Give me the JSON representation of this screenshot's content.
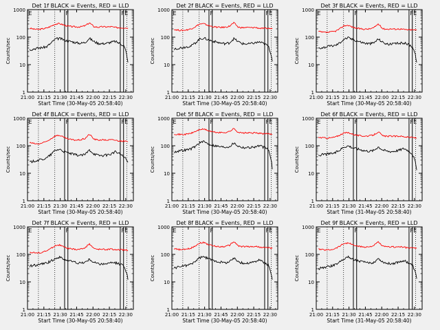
{
  "chart_data": [
    {
      "type": "line",
      "title": "Det 1f BLACK = Events, RED = LLD",
      "xlabel": "Start Time (30-May-05 20:58:40)",
      "ylabel": "Counts/sec",
      "xticks": [
        "21:00",
        "21:15",
        "21:30",
        "21:45",
        "22:00",
        "22:15",
        "22:30"
      ],
      "yticks": [
        "1",
        "10",
        "100",
        "1000"
      ],
      "ylim": [
        1,
        1000
      ],
      "yscale": "log",
      "markers": [
        "E",
        "F",
        "F",
        "E"
      ],
      "series": [
        {
          "name": "RED = LLD",
          "color": "#ff0000",
          "values": [
            210,
            195,
            190,
            200,
            215,
            250,
            300,
            310,
            275,
            250,
            240,
            235,
            240,
            260,
            330,
            240,
            230,
            240,
            235,
            240,
            225,
            220,
            220,
            215
          ]
        },
        {
          "name": "BLACK = Events",
          "color": "#000000",
          "values": [
            35,
            38,
            40,
            42,
            45,
            60,
            85,
            90,
            80,
            72,
            68,
            62,
            60,
            65,
            90,
            70,
            60,
            58,
            60,
            65,
            70,
            60,
            50,
            12
          ]
        }
      ]
    },
    {
      "type": "line",
      "title": "Det 2f BLACK = Events, RED = LLD",
      "xlabel": "Start Time (30-May-05 20:58:40)",
      "ylabel": "Counts/sec",
      "xticks": [
        "21:00",
        "21:15",
        "21:30",
        "21:45",
        "22:00",
        "22:15",
        "22:30"
      ],
      "yticks": [
        "1",
        "10",
        "100",
        "1000"
      ],
      "ylim": [
        1,
        1000
      ],
      "yscale": "log",
      "markers": [
        "E",
        "F",
        "F",
        "E"
      ],
      "series": [
        {
          "name": "RED = LLD",
          "color": "#ff0000",
          "values": [
            190,
            180,
            175,
            185,
            200,
            240,
            300,
            305,
            265,
            240,
            230,
            225,
            230,
            250,
            330,
            230,
            220,
            225,
            220,
            225,
            210,
            205,
            210,
            200
          ]
        },
        {
          "name": "BLACK = Events",
          "color": "#000000",
          "values": [
            38,
            40,
            42,
            45,
            48,
            62,
            85,
            92,
            80,
            72,
            66,
            60,
            58,
            62,
            88,
            68,
            58,
            56,
            58,
            62,
            66,
            58,
            48,
            13
          ]
        }
      ]
    },
    {
      "type": "line",
      "title": "Det 3f BLACK = Events, RED = LLD",
      "xlabel": "Start Time (30-May-05 20:58:40)",
      "ylabel": "Counts/sec",
      "xticks": [
        "21:00",
        "21:15",
        "21:30",
        "21:45",
        "22:00",
        "22:15",
        "22:30"
      ],
      "yticks": [
        "1",
        "10",
        "100",
        "1000"
      ],
      "ylim": [
        1,
        1000
      ],
      "yscale": "log",
      "markers": [
        "E",
        "F",
        "F",
        "E"
      ],
      "series": [
        {
          "name": "RED = LLD",
          "color": "#ff0000",
          "values": [
            160,
            150,
            148,
            155,
            165,
            200,
            260,
            270,
            230,
            210,
            200,
            195,
            200,
            220,
            300,
            205,
            195,
            200,
            195,
            200,
            190,
            185,
            185,
            180
          ]
        },
        {
          "name": "BLACK = Events",
          "color": "#000000",
          "values": [
            40,
            42,
            45,
            48,
            50,
            62,
            85,
            95,
            82,
            74,
            66,
            60,
            58,
            62,
            85,
            66,
            56,
            55,
            58,
            60,
            62,
            55,
            45,
            12
          ]
        }
      ]
    },
    {
      "type": "line",
      "title": "Det 4f BLACK = Events, RED = LLD",
      "xlabel": "Start Time (30-May-05 20:58:40)",
      "ylabel": "Counts/sec",
      "xticks": [
        "21:00",
        "21:15",
        "21:30",
        "21:45",
        "22:00",
        "22:15",
        "22:30"
      ],
      "yticks": [
        "1",
        "10",
        "100",
        "1000"
      ],
      "ylim": [
        1,
        1000
      ],
      "yscale": "log",
      "markers": [
        "E",
        "F",
        "F",
        "E"
      ],
      "series": [
        {
          "name": "RED = LLD",
          "color": "#ff0000",
          "values": [
            130,
            120,
            115,
            125,
            145,
            180,
            230,
            240,
            200,
            175,
            165,
            160,
            165,
            185,
            260,
            175,
            160,
            165,
            160,
            165,
            160,
            150,
            150,
            140
          ]
        },
        {
          "name": "BLACK = Events",
          "color": "#000000",
          "values": [
            25,
            28,
            30,
            32,
            36,
            48,
            68,
            75,
            62,
            55,
            50,
            46,
            45,
            48,
            70,
            52,
            45,
            44,
            46,
            50,
            60,
            52,
            40,
            25
          ]
        }
      ]
    },
    {
      "type": "line",
      "title": "Det 5f BLACK = Events, RED = LLD",
      "xlabel": "Start Time (30-May-05 20:58:40)",
      "ylabel": "Counts/sec",
      "xticks": [
        "21:00",
        "21:15",
        "21:30",
        "21:45",
        "22:00",
        "22:15",
        "22:30"
      ],
      "yticks": [
        "1",
        "10",
        "100",
        "1000"
      ],
      "ylim": [
        1,
        1000
      ],
      "yscale": "log",
      "markers": [
        "E",
        "F",
        "F",
        "E"
      ],
      "series": [
        {
          "name": "RED = LLD",
          "color": "#ff0000",
          "values": [
            270,
            260,
            255,
            265,
            285,
            330,
            390,
            400,
            355,
            320,
            305,
            300,
            305,
            330,
            420,
            310,
            290,
            295,
            290,
            295,
            285,
            270,
            275,
            260
          ]
        },
        {
          "name": "BLACK = Events",
          "color": "#000000",
          "values": [
            60,
            65,
            68,
            72,
            78,
            95,
            130,
            140,
            120,
            105,
            98,
            92,
            90,
            95,
            125,
            98,
            88,
            86,
            88,
            92,
            100,
            88,
            75,
            14
          ]
        }
      ]
    },
    {
      "type": "line",
      "title": "Det 6f BLACK = Events, RED = LLD",
      "xlabel": "Start Time (31-May-05 20:58:40)",
      "ylabel": "Counts/sec",
      "xticks": [
        "21:00",
        "21:15",
        "21:30",
        "21:45",
        "22:00",
        "22:15",
        "22:30"
      ],
      "yticks": [
        "1",
        "10",
        "100",
        "1000"
      ],
      "ylim": [
        1,
        1000
      ],
      "yscale": "log",
      "markers": [
        "E",
        "F",
        "F",
        "E"
      ],
      "series": [
        {
          "name": "RED = LLD",
          "color": "#ff0000",
          "values": [
            200,
            195,
            190,
            195,
            210,
            245,
            290,
            300,
            265,
            240,
            230,
            225,
            230,
            250,
            320,
            230,
            220,
            225,
            220,
            225,
            215,
            205,
            200,
            190
          ]
        },
        {
          "name": "BLACK = Events",
          "color": "#000000",
          "values": [
            45,
            48,
            50,
            52,
            56,
            70,
            92,
            100,
            85,
            78,
            72,
            66,
            64,
            68,
            92,
            72,
            64,
            62,
            65,
            70,
            80,
            68,
            50,
            13
          ]
        }
      ]
    },
    {
      "type": "line",
      "title": "Det 7f BLACK = Events, RED = LLD",
      "xlabel": "Start Time (30-May-05 20:58:40)",
      "ylabel": "Counts/sec",
      "xticks": [
        "21:00",
        "21:15",
        "21:30",
        "21:45",
        "22:00",
        "22:15",
        "22:30"
      ],
      "yticks": [
        "1",
        "10",
        "100",
        "1000"
      ],
      "ylim": [
        1,
        1000
      ],
      "yscale": "log",
      "markers": [
        "E",
        "F",
        "F",
        "E"
      ],
      "series": [
        {
          "name": "RED = LLD",
          "color": "#ff0000",
          "values": [
            120,
            115,
            112,
            120,
            135,
            165,
            210,
            220,
            185,
            165,
            155,
            150,
            155,
            175,
            240,
            165,
            150,
            155,
            150,
            155,
            150,
            145,
            145,
            140
          ]
        },
        {
          "name": "BLACK = Events",
          "color": "#000000",
          "values": [
            38,
            40,
            42,
            45,
            48,
            58,
            72,
            78,
            66,
            60,
            55,
            50,
            48,
            52,
            65,
            52,
            46,
            45,
            46,
            48,
            50,
            45,
            40,
            12
          ]
        }
      ]
    },
    {
      "type": "line",
      "title": "Det 8f BLACK = Events, RED = LLD",
      "xlabel": "Start Time (30-May-05 20:58:40)",
      "ylabel": "Counts/sec",
      "xticks": [
        "21:00",
        "21:15",
        "21:30",
        "21:45",
        "22:00",
        "22:15",
        "22:30"
      ],
      "yticks": [
        "1",
        "10",
        "100",
        "1000"
      ],
      "ylim": [
        1,
        1000
      ],
      "yscale": "log",
      "markers": [
        "E",
        "F",
        "F",
        "E"
      ],
      "series": [
        {
          "name": "RED = LLD",
          "color": "#ff0000",
          "values": [
            160,
            150,
            148,
            155,
            170,
            205,
            260,
            270,
            230,
            205,
            195,
            190,
            195,
            215,
            290,
            205,
            190,
            195,
            190,
            195,
            185,
            175,
            175,
            165
          ]
        },
        {
          "name": "BLACK = Events",
          "color": "#000000",
          "values": [
            32,
            35,
            38,
            40,
            44,
            56,
            75,
            82,
            70,
            62,
            56,
            52,
            50,
            54,
            72,
            56,
            48,
            47,
            50,
            55,
            62,
            52,
            42,
            12
          ]
        }
      ]
    },
    {
      "type": "line",
      "title": "Det 9f BLACK = Events, RED = LLD",
      "xlabel": "Start Time (31-May-05 20:58:40)",
      "ylabel": "Counts/sec",
      "xticks": [
        "21:00",
        "21:15",
        "21:30",
        "21:45",
        "22:00",
        "22:15",
        "22:30"
      ],
      "yticks": [
        "1",
        "10",
        "100",
        "1000"
      ],
      "ylim": [
        1,
        1000
      ],
      "yscale": "log",
      "markers": [
        "E",
        "F",
        "F",
        "E"
      ],
      "series": [
        {
          "name": "RED = LLD",
          "color": "#ff0000",
          "values": [
            155,
            148,
            145,
            150,
            165,
            200,
            250,
            260,
            225,
            200,
            190,
            185,
            190,
            210,
            280,
            200,
            185,
            190,
            185,
            190,
            180,
            172,
            172,
            165
          ]
        },
        {
          "name": "BLACK = Events",
          "color": "#000000",
          "values": [
            30,
            33,
            35,
            38,
            42,
            54,
            72,
            80,
            68,
            60,
            55,
            50,
            48,
            52,
            70,
            54,
            47,
            46,
            49,
            54,
            60,
            50,
            40,
            13
          ]
        }
      ]
    }
  ]
}
